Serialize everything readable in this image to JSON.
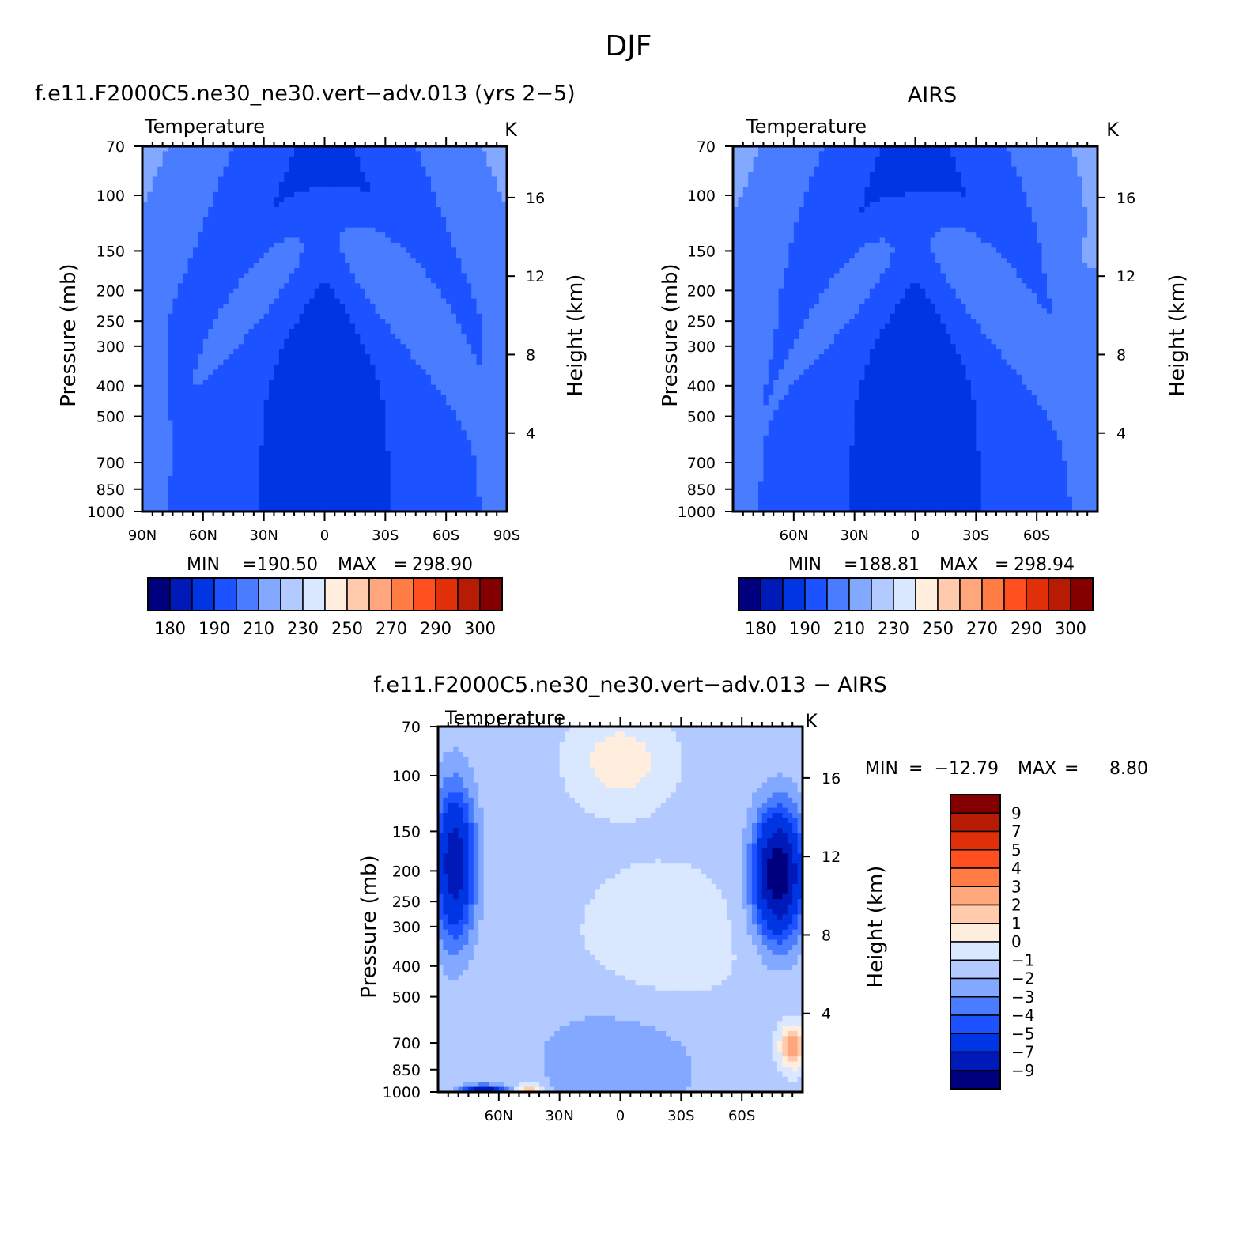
{
  "page": {
    "title": "DJF"
  },
  "chart_data": [
    {
      "type": "heatmap",
      "panel_title": "f.e11.F2000C5.ne30_ne30.vert−adv.013 (yrs 2−5)",
      "subtitle": "Temperature",
      "units": "K",
      "ylabel": "Pressure (mb)",
      "y2label": "Height (km)",
      "x_ticks": [
        "90N",
        "60N",
        "30N",
        "0",
        "30S",
        "60S",
        "90S"
      ],
      "x_tick_lat": [
        90,
        60,
        30,
        0,
        -30,
        -60,
        -90
      ],
      "y_ticks": [
        70,
        100,
        150,
        200,
        250,
        300,
        400,
        500,
        700,
        850,
        1000
      ],
      "y2_ticks": [
        4,
        8,
        12,
        16
      ],
      "xlim": [
        90,
        -90
      ],
      "ylim": [
        1000,
        70
      ],
      "y_scale": "log",
      "stats": {
        "min_label": "MIN",
        "min": "190.50",
        "max_label": "MAX",
        "max": "298.90"
      },
      "colorbar": {
        "orientation": "horizontal",
        "labels": [
          "180",
          "190",
          "210",
          "230",
          "250",
          "270",
          "290",
          "300"
        ],
        "colors": [
          "#00007f",
          "#001aba",
          "#0035e3",
          "#1c52ff",
          "#4a7cff",
          "#82a8ff",
          "#b2caff",
          "#d9e8ff",
          "#ffeedd",
          "#ffcbac",
          "#ffa67c",
          "#ff7c45",
          "#ff4f1f",
          "#e12f09",
          "#b81b04",
          "#840000"
        ]
      }
    },
    {
      "type": "heatmap",
      "panel_title": "AIRS",
      "subtitle": "Temperature",
      "units": "K",
      "ylabel": "Pressure (mb)",
      "y2label": "Height (km)",
      "x_ticks": [
        "60N",
        "30N",
        "0",
        "30S",
        "60S"
      ],
      "x_tick_lat": [
        60,
        30,
        0,
        -30,
        -60
      ],
      "y_ticks": [
        70,
        100,
        150,
        200,
        250,
        300,
        400,
        500,
        700,
        850,
        1000
      ],
      "y2_ticks": [
        4,
        8,
        12,
        16
      ],
      "xlim": [
        90,
        -90
      ],
      "ylim": [
        1000,
        70
      ],
      "y_scale": "log",
      "stats": {
        "min_label": "MIN",
        "min": "188.81",
        "max_label": "MAX",
        "max": "298.94"
      },
      "colorbar": {
        "orientation": "horizontal",
        "labels": [
          "180",
          "190",
          "210",
          "230",
          "250",
          "270",
          "290",
          "300"
        ],
        "colors": [
          "#00007f",
          "#001aba",
          "#0035e3",
          "#1c52ff",
          "#4a7cff",
          "#82a8ff",
          "#b2caff",
          "#d9e8ff",
          "#ffeedd",
          "#ffcbac",
          "#ffa67c",
          "#ff7c45",
          "#ff4f1f",
          "#e12f09",
          "#b81b04",
          "#840000"
        ]
      }
    },
    {
      "type": "heatmap",
      "panel_title": "f.e11.F2000C5.ne30_ne30.vert−adv.013 − AIRS",
      "subtitle": "Temperature",
      "units": "K",
      "ylabel": "Pressure (mb)",
      "y2label": "Height (km)",
      "x_ticks": [
        "60N",
        "30N",
        "0",
        "30S",
        "60S"
      ],
      "x_tick_lat": [
        60,
        30,
        0,
        -30,
        -60
      ],
      "y_ticks": [
        70,
        100,
        150,
        200,
        250,
        300,
        400,
        500,
        700,
        850,
        1000
      ],
      "y2_ticks": [
        4,
        8,
        12,
        16
      ],
      "xlim": [
        90,
        -90
      ],
      "ylim": [
        1000,
        70
      ],
      "y_scale": "log",
      "stats": {
        "min_label": "MIN",
        "min": "−12.79",
        "max_label": "MAX",
        "max": "8.80"
      },
      "colorbar": {
        "orientation": "vertical",
        "labels": [
          "9",
          "7",
          "5",
          "4",
          "3",
          "2",
          "1",
          "0",
          "−1",
          "−2",
          "−3",
          "−4",
          "−5",
          "−7",
          "−9"
        ],
        "colors": [
          "#840000",
          "#b81b04",
          "#e12f09",
          "#ff4f1f",
          "#ff7c45",
          "#ffa67c",
          "#ffcbac",
          "#ffeedd",
          "#d9e8ff",
          "#b2caff",
          "#82a8ff",
          "#4a7cff",
          "#1c52ff",
          "#0035e3",
          "#001aba",
          "#00007f"
        ]
      }
    }
  ]
}
